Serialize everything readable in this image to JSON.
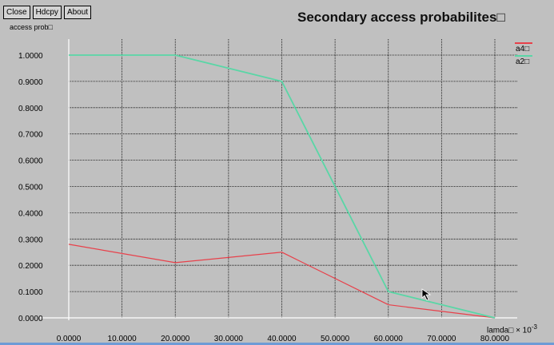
{
  "toolbar": {
    "close": "Close",
    "hdcpy": "Hdcpy",
    "about": "About"
  },
  "title": "Secondary access probabilites□",
  "y_axis_label": "access prob□",
  "x_axis_label": "lamda□",
  "x_unit": "× 10",
  "x_unit_exp": "-3",
  "colors": {
    "a4": "#e8404a",
    "a2": "#5ad6a6",
    "background": "#c0c0c0",
    "grid": "#000000"
  },
  "legend": [
    {
      "name": "a4□",
      "color": "#e8404a"
    },
    {
      "name": "a2□",
      "color": "#5ad6a6"
    }
  ],
  "chart_data": {
    "type": "line",
    "title": "Secondary access probabilites□",
    "xlabel": "lamda□ × 10-3",
    "ylabel": "access prob□",
    "xlim": [
      0,
      80
    ],
    "ylim": [
      0,
      1
    ],
    "grid": true,
    "legend_position": "top-right",
    "x_ticks": [
      "0.0000",
      "10.0000",
      "20.0000",
      "30.0000",
      "40.0000",
      "50.0000",
      "60.0000",
      "70.0000",
      "80.0000"
    ],
    "y_ticks": [
      "0.0000",
      "0.1000",
      "0.2000",
      "0.3000",
      "0.4000",
      "0.5000",
      "0.6000",
      "0.7000",
      "0.8000",
      "0.9000",
      "1.0000"
    ],
    "x": [
      0,
      20,
      40,
      60,
      80
    ],
    "series": [
      {
        "name": "a4□",
        "color": "#e8404a",
        "values": [
          0.28,
          0.21,
          0.25,
          0.05,
          0.0
        ]
      },
      {
        "name": "a2□",
        "color": "#5ad6a6",
        "values": [
          1.0,
          1.0,
          0.9,
          0.1,
          0.0
        ]
      }
    ]
  }
}
